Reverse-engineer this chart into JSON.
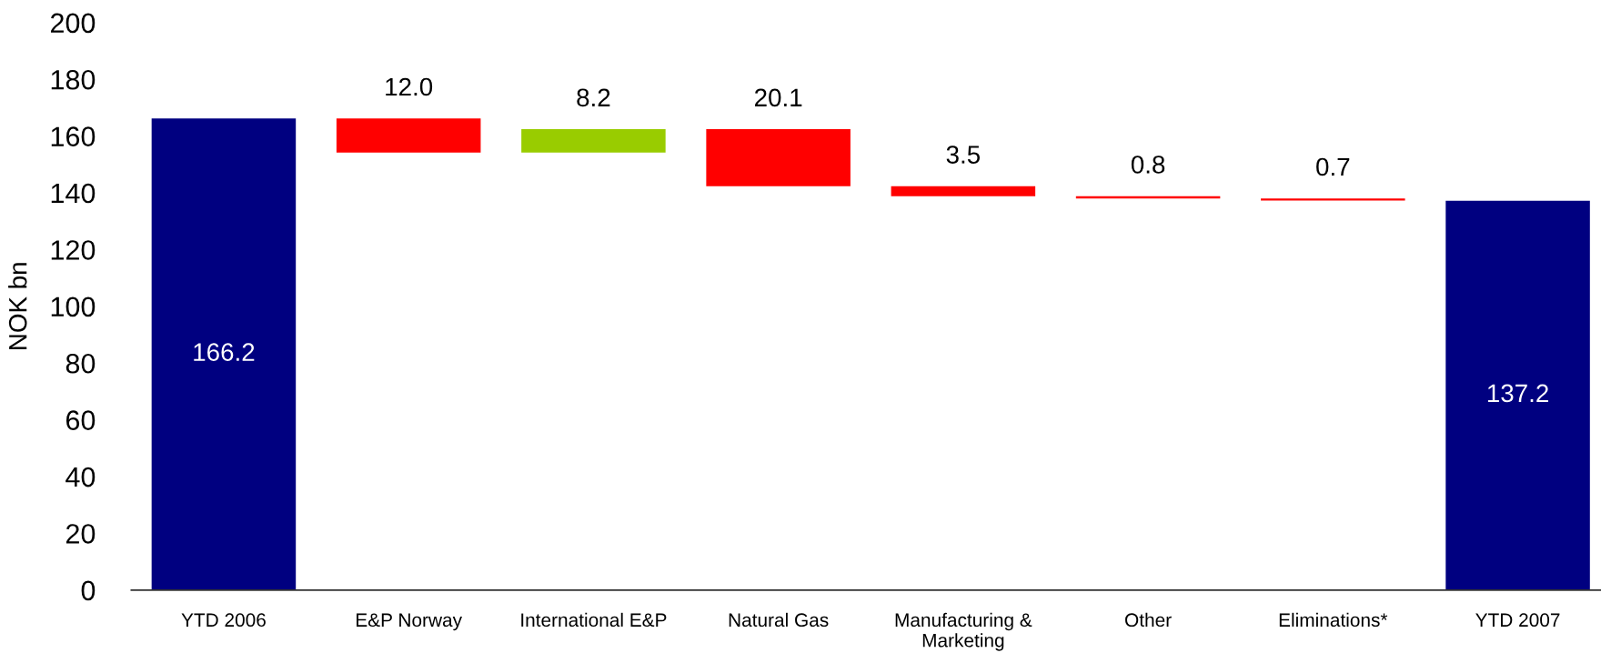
{
  "chart_data": {
    "type": "bar",
    "ylabel": "NOK bn",
    "categories": [
      "YTD 2006",
      "E&P Norway",
      "International E&P",
      "Natural Gas",
      "Manufacturing &\nMarketing",
      "Other",
      "Eliminations*",
      "YTD 2007"
    ],
    "values": [
      166.2,
      12.0,
      8.2,
      20.1,
      3.5,
      0.8,
      0.7,
      137.2
    ],
    "base": [
      0,
      154.2,
      154.2,
      142.3,
      138.8,
      138.0,
      137.3,
      0
    ],
    "colors": [
      "#000080",
      "#ff0000",
      "#99cc00",
      "#ff0000",
      "#ff0000",
      "#ff0000",
      "#ff0000",
      "#000080"
    ],
    "value_labels": [
      "166.2",
      "12.0",
      "8.2",
      "20.1",
      "3.5",
      "0.8",
      "0.7",
      "137.2"
    ],
    "ylim": [
      0,
      200
    ],
    "yticks": [
      0,
      20,
      40,
      60,
      80,
      100,
      120,
      140,
      160,
      180,
      200
    ]
  }
}
